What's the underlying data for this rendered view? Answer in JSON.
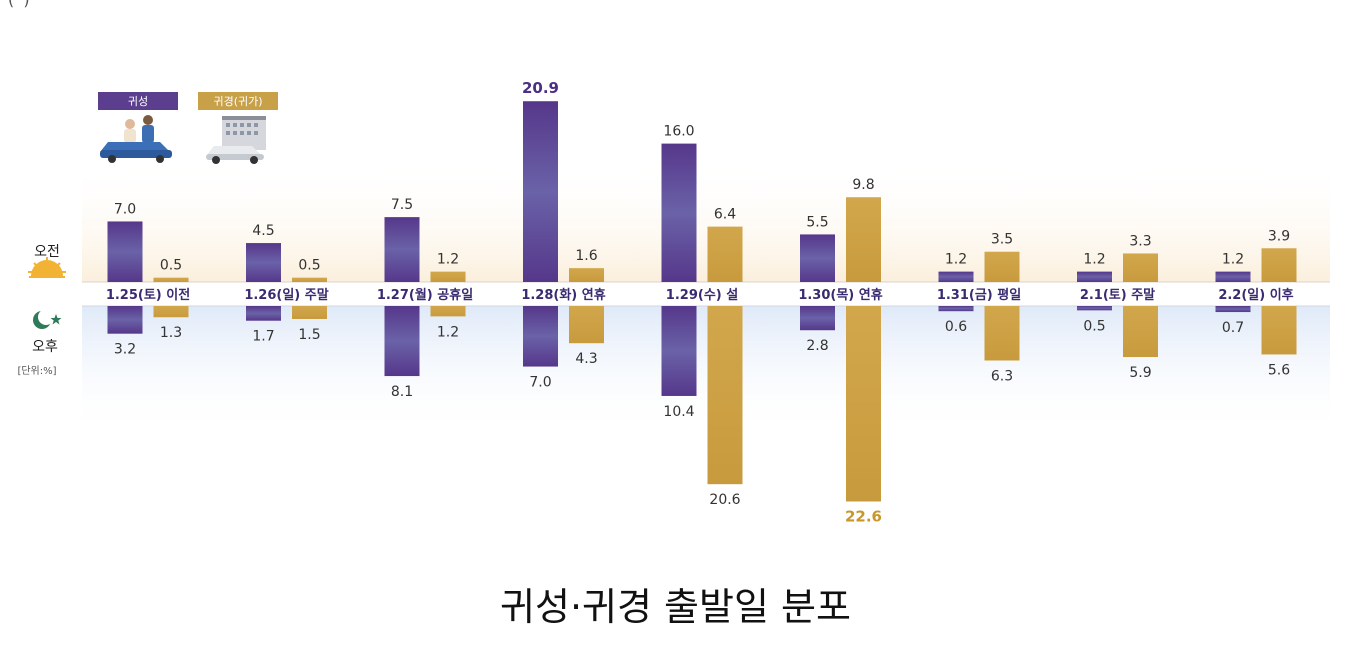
{
  "caption": "귀성·귀경 출발일 분포",
  "top_fragment": "( )",
  "legend": [
    {
      "label": "귀성",
      "color": "#5b3e8d"
    },
    {
      "label": "귀경(귀가)",
      "color": "#c8a048"
    }
  ],
  "side_labels": {
    "am": "오전",
    "pm": "오후",
    "unit": "[단위:%]"
  },
  "icons": {
    "am": "sun-icon",
    "pm": "moon-star-icon",
    "legend1": "family-car-icon",
    "legend2": "building-car-icon"
  },
  "colors": {
    "homecoming": "#5b3e8d",
    "return": "#c8a048",
    "highlight": "#4a2f84",
    "highlight_return": "#c8962a"
  },
  "chart_data": {
    "type": "bar",
    "title": "",
    "categories": [
      "1.25(토) 이전",
      "1.26(일) 주말",
      "1.27(월) 공휴일",
      "1.28(화) 연휴",
      "1.29(수) 설",
      "1.30(목) 연휴",
      "1.31(금) 평일",
      "2.1(토) 주말",
      "2.2(일) 이후"
    ],
    "series": [
      {
        "name": "귀성",
        "am": [
          7.0,
          4.5,
          7.5,
          20.9,
          16.0,
          5.5,
          1.2,
          1.2,
          1.2
        ],
        "pm": [
          3.2,
          1.7,
          8.1,
          7.0,
          10.4,
          2.8,
          0.6,
          0.5,
          0.7
        ]
      },
      {
        "name": "귀경(귀가)",
        "am": [
          0.5,
          0.5,
          1.2,
          1.6,
          6.4,
          9.8,
          3.5,
          3.3,
          3.9
        ],
        "pm": [
          1.3,
          1.5,
          1.2,
          4.3,
          20.6,
          22.6,
          6.3,
          5.9,
          5.6
        ]
      }
    ],
    "value_labels": {
      "series0_am": [
        "7.0",
        "4.5",
        "7.5",
        "20.9",
        "16.0",
        "5.5",
        "1.2",
        "1.2",
        "1.2"
      ],
      "series0_pm": [
        "3.2",
        "1.7",
        "8.1",
        "7.0",
        "10.4",
        "2.8",
        "0.6",
        "0.5",
        "0.7"
      ],
      "series1_am": [
        "0.5",
        "0.5",
        "1.2",
        "1.6",
        "6.4",
        "9.8",
        "3.5",
        "3.3",
        "3.9"
      ],
      "series1_pm": [
        "1.3",
        "1.5",
        "1.2",
        "4.3",
        "20.6",
        "22.6",
        "6.3",
        "5.9",
        "5.6"
      ]
    },
    "highlight": {
      "series0_am_index": 3,
      "series1_pm_index": 5
    },
    "upper_half": "오전",
    "lower_half": "오후",
    "unit": "%"
  }
}
